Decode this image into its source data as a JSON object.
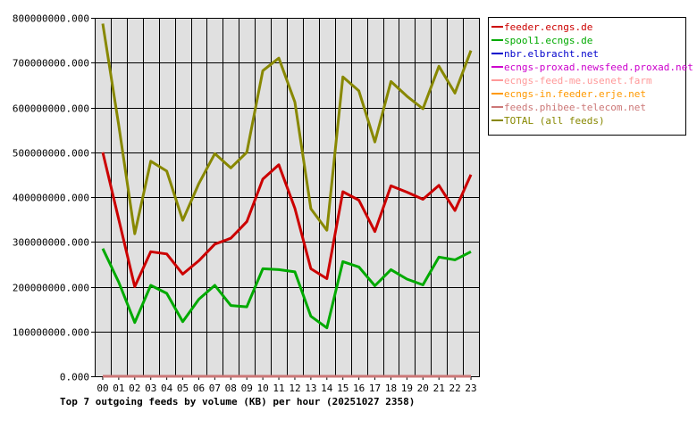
{
  "chart_data": {
    "type": "line",
    "title": "Top 7 outgoing feeds by volume (KB) per hour (20251027 2358)",
    "categories": [
      "00",
      "01",
      "02",
      "03",
      "04",
      "05",
      "06",
      "07",
      "08",
      "09",
      "10",
      "11",
      "12",
      "13",
      "14",
      "15",
      "16",
      "17",
      "18",
      "19",
      "20",
      "21",
      "22",
      "23"
    ],
    "y_ticks": [
      "0.000",
      "100000000.000",
      "200000000.000",
      "300000000.000",
      "400000000.000",
      "500000000.000",
      "600000000.000",
      "700000000.000",
      "800000000.000"
    ],
    "ylim": [
      0,
      800000000
    ],
    "grid": true,
    "legend_position": "top-right",
    "series": [
      {
        "name": "feeder.ecngs.de",
        "color": "#cc0000",
        "values": [
          500000000,
          350000000,
          200000000,
          278000000,
          273000000,
          228000000,
          258000000,
          295000000,
          308000000,
          345000000,
          440000000,
          472000000,
          375000000,
          240000000,
          218000000,
          412000000,
          393000000,
          323000000,
          425000000,
          411000000,
          395000000,
          426000000,
          370000000,
          450000000
        ]
      },
      {
        "name": "spool1.ecngs.de",
        "color": "#00aa00",
        "values": [
          285000000,
          210000000,
          120000000,
          203000000,
          185000000,
          122000000,
          172000000,
          203000000,
          158000000,
          155000000,
          240000000,
          238000000,
          233000000,
          134000000,
          108000000,
          256000000,
          244000000,
          202000000,
          238000000,
          217000000,
          204000000,
          266000000,
          260000000,
          278000000
        ]
      },
      {
        "name": "nbr.elbracht.net",
        "color": "#0000cc",
        "values": [
          0,
          0,
          0,
          0,
          0,
          0,
          0,
          0,
          0,
          0,
          0,
          0,
          0,
          0,
          0,
          0,
          0,
          0,
          0,
          0,
          0,
          0,
          0,
          0
        ]
      },
      {
        "name": "ecngs-proxad.newsfeed.proxad.net",
        "color": "#cc00cc",
        "values": [
          0,
          0,
          0,
          0,
          0,
          0,
          0,
          0,
          0,
          0,
          0,
          0,
          0,
          0,
          0,
          0,
          0,
          0,
          0,
          0,
          0,
          0,
          0,
          0
        ]
      },
      {
        "name": "ecngs-feed-me.usenet.farm",
        "color": "#ff9999",
        "values": [
          0,
          0,
          0,
          0,
          0,
          0,
          0,
          0,
          0,
          0,
          0,
          0,
          0,
          0,
          0,
          0,
          0,
          0,
          0,
          0,
          0,
          0,
          0,
          0
        ]
      },
      {
        "name": "ecngs-in.feeder.erje.net",
        "color": "#ff9900",
        "values": [
          0,
          0,
          0,
          0,
          0,
          0,
          0,
          0,
          0,
          0,
          0,
          0,
          0,
          0,
          0,
          0,
          0,
          0,
          0,
          0,
          0,
          0,
          0,
          0
        ]
      },
      {
        "name": "feeds.phibee-telecom.net",
        "color": "#cc7777",
        "values": [
          0,
          0,
          0,
          0,
          0,
          0,
          0,
          0,
          0,
          0,
          0,
          0,
          0,
          0,
          0,
          0,
          0,
          0,
          0,
          0,
          0,
          0,
          0,
          0
        ]
      },
      {
        "name": "TOTAL (all feeds)",
        "color": "#888800",
        "values": [
          787000000,
          560000000,
          318000000,
          480000000,
          458000000,
          348000000,
          430000000,
          497000000,
          465000000,
          500000000,
          682000000,
          710000000,
          612000000,
          374000000,
          326000000,
          668000000,
          637000000,
          523000000,
          658000000,
          625000000,
          597000000,
          692000000,
          632000000,
          727000000
        ]
      }
    ]
  }
}
